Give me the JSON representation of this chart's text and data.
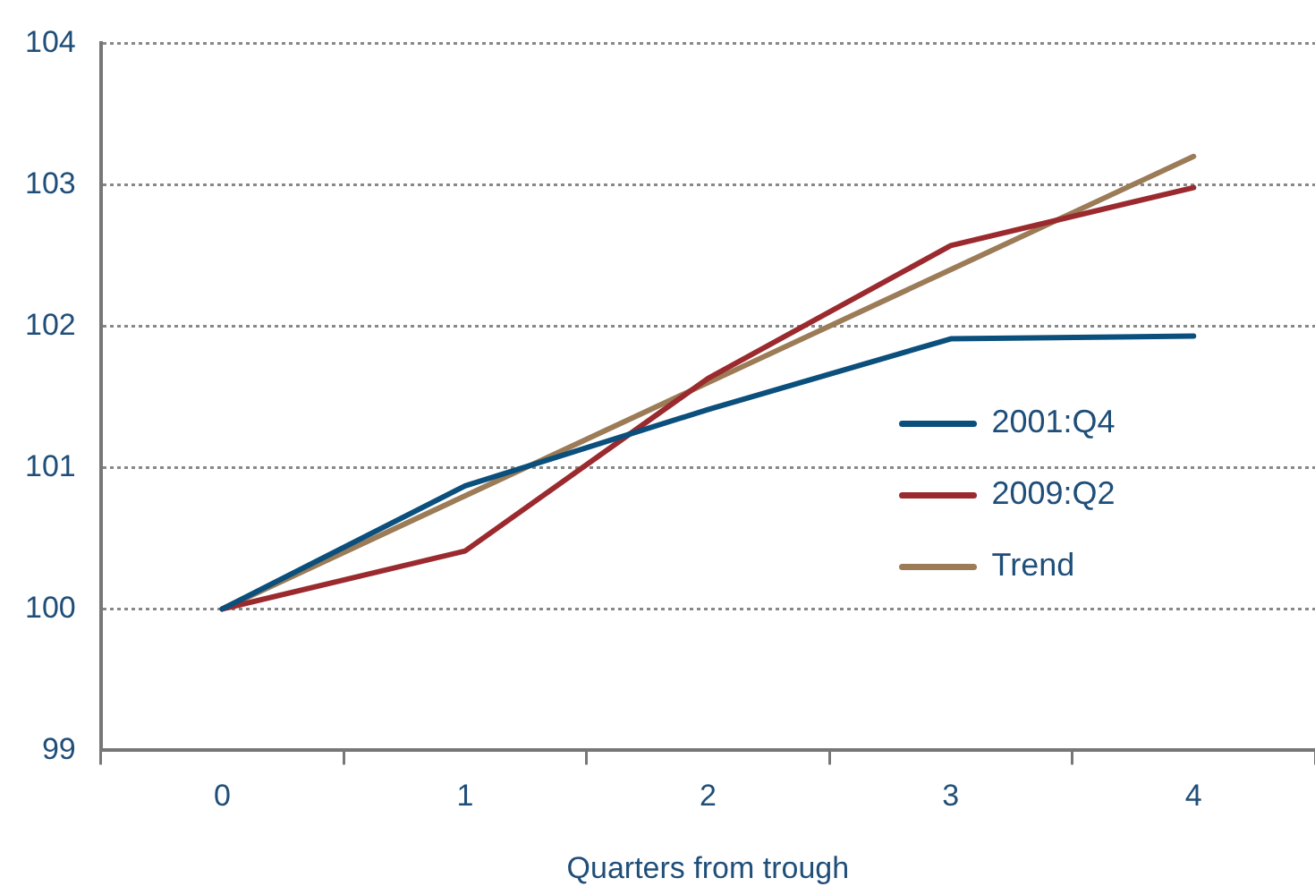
{
  "chart_data": {
    "type": "line",
    "xlabel": "Quarters from trough",
    "categories": [
      "0",
      "1",
      "2",
      "3",
      "4"
    ],
    "ylim": [
      99,
      104
    ],
    "yticks": [
      99,
      100,
      101,
      102,
      103,
      104
    ],
    "grid": "y",
    "line_style": "solid",
    "marker": "none",
    "legend": "right",
    "series": [
      {
        "name": "2001:Q4",
        "color": "#0b4f7c",
        "values": [
          100,
          100.87,
          101.41,
          101.91,
          101.93
        ]
      },
      {
        "name": "2009:Q2",
        "color": "#9b2a2e",
        "values": [
          100,
          100.41,
          101.63,
          102.57,
          102.98
        ]
      },
      {
        "name": "Trend",
        "color": "#9c7b57",
        "values": [
          100,
          100.8,
          101.6,
          102.4,
          103.2
        ]
      }
    ]
  }
}
